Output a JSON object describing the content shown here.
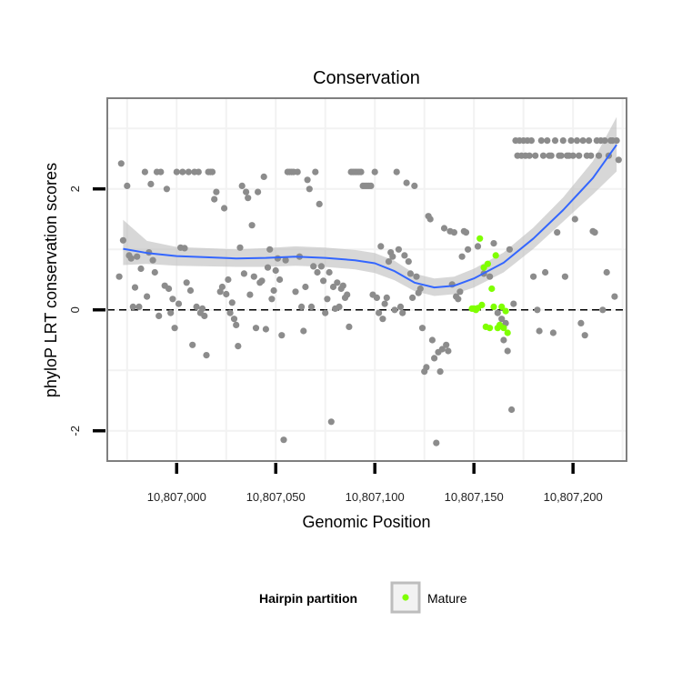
{
  "chart_data": {
    "type": "scatter",
    "title": "Conservation",
    "xlabel": "Genomic Position",
    "ylabel": "phyloP LRT conservation scores",
    "xlim": [
      10806965,
      10807227
    ],
    "ylim": [
      -2.5,
      3.5
    ],
    "x_ticks": [
      10807000,
      10807050,
      10807100,
      10807150,
      10807200
    ],
    "x_tick_labels": [
      "10,807,000",
      "10,807,050",
      "10,807,100",
      "10,807,150",
      "10,807,200"
    ],
    "y_ticks": [
      -2,
      0,
      2
    ],
    "y_tick_labels": [
      "-2",
      "0",
      "2"
    ],
    "reference_line": {
      "y": 0,
      "style": "dashed"
    },
    "grid": true,
    "colors": {
      "points": "#8c8c8c",
      "mature": "#7fff00",
      "smooth": "#3366ff",
      "ribbon": "#bdbdbd",
      "frame": "#7f7f7f"
    },
    "legend": {
      "title": "Hairpin partition",
      "entries": [
        {
          "label": "Mature",
          "color": "#7fff00"
        }
      ],
      "position": "bottom"
    },
    "smooth": {
      "x": [
        10806973,
        10806985,
        10807000,
        10807015,
        10807030,
        10807045,
        10807060,
        10807075,
        10807090,
        10807100,
        10807110,
        10807120,
        10807130,
        10807140,
        10807150,
        10807165,
        10807180,
        10807195,
        10807210,
        10807222
      ],
      "y": [
        1.01,
        0.94,
        0.89,
        0.87,
        0.85,
        0.86,
        0.88,
        0.86,
        0.82,
        0.77,
        0.64,
        0.45,
        0.37,
        0.4,
        0.52,
        0.78,
        1.18,
        1.65,
        2.18,
        2.73
      ],
      "lower": [
        0.74,
        0.76,
        0.73,
        0.72,
        0.71,
        0.71,
        0.73,
        0.71,
        0.67,
        0.61,
        0.49,
        0.31,
        0.23,
        0.26,
        0.37,
        0.62,
        1.01,
        1.46,
        1.91,
        2.29
      ],
      "upper": [
        1.49,
        1.14,
        1.04,
        1.02,
        1.0,
        1.02,
        1.05,
        1.03,
        0.99,
        0.94,
        0.81,
        0.6,
        0.52,
        0.55,
        0.68,
        0.95,
        1.36,
        1.86,
        2.46,
        3.19
      ]
    },
    "series": [
      {
        "name": "",
        "color": "#8c8c8c",
        "points": [
          [
            10806971,
            0.55
          ],
          [
            10806972,
            2.42
          ],
          [
            10806973,
            1.15
          ],
          [
            10806975,
            2.05
          ],
          [
            10806976,
            0.9
          ],
          [
            10806977,
            0.85
          ],
          [
            10806978,
            0.05
          ],
          [
            10806979,
            0.37
          ],
          [
            10806980,
            0.88
          ],
          [
            10806981,
            0.05
          ],
          [
            10806982,
            0.68
          ],
          [
            10806984,
            2.28
          ],
          [
            10806985,
            0.22
          ],
          [
            10806986,
            0.95
          ],
          [
            10806987,
            2.08
          ],
          [
            10806988,
            0.82
          ],
          [
            10806989,
            0.62
          ],
          [
            10806990,
            2.28
          ],
          [
            10806991,
            -0.1
          ],
          [
            10806992,
            2.28
          ],
          [
            10806994,
            0.4
          ],
          [
            10806995,
            2.0
          ],
          [
            10806996,
            0.35
          ],
          [
            10806997,
            -0.05
          ],
          [
            10806998,
            0.18
          ],
          [
            10806999,
            -0.3
          ],
          [
            10807000,
            2.28
          ],
          [
            10807001,
            0.1
          ],
          [
            10807002,
            1.03
          ],
          [
            10807003,
            2.28
          ],
          [
            10807004,
            1.02
          ],
          [
            10807005,
            0.45
          ],
          [
            10807006,
            2.28
          ],
          [
            10807007,
            0.32
          ],
          [
            10807008,
            -0.58
          ],
          [
            10807009,
            2.28
          ],
          [
            10807010,
            0.05
          ],
          [
            10807011,
            2.28
          ],
          [
            10807012,
            -0.05
          ],
          [
            10807013,
            0.02
          ],
          [
            10807014,
            -0.1
          ],
          [
            10807015,
            -0.75
          ],
          [
            10807016,
            2.28
          ],
          [
            10807017,
            2.28
          ],
          [
            10807018,
            2.28
          ],
          [
            10807019,
            1.83
          ],
          [
            10807020,
            1.95
          ],
          [
            10807022,
            0.3
          ],
          [
            10807023,
            0.38
          ],
          [
            10807024,
            1.68
          ],
          [
            10807025,
            0.26
          ],
          [
            10807026,
            0.5
          ],
          [
            10807027,
            -0.05
          ],
          [
            10807028,
            0.12
          ],
          [
            10807029,
            -0.15
          ],
          [
            10807030,
            -0.25
          ],
          [
            10807031,
            -0.6
          ],
          [
            10807032,
            1.03
          ],
          [
            10807033,
            2.05
          ],
          [
            10807034,
            0.6
          ],
          [
            10807035,
            1.95
          ],
          [
            10807036,
            1.85
          ],
          [
            10807037,
            0.25
          ],
          [
            10807038,
            1.4
          ],
          [
            10807039,
            0.55
          ],
          [
            10807040,
            -0.3
          ],
          [
            10807041,
            1.95
          ],
          [
            10807042,
            0.45
          ],
          [
            10807043,
            0.48
          ],
          [
            10807044,
            2.2
          ],
          [
            10807045,
            -0.32
          ],
          [
            10807046,
            0.7
          ],
          [
            10807047,
            1.0
          ],
          [
            10807048,
            0.18
          ],
          [
            10807049,
            0.32
          ],
          [
            10807050,
            0.65
          ],
          [
            10807051,
            0.85
          ],
          [
            10807052,
            0.5
          ],
          [
            10807053,
            -0.42
          ],
          [
            10807054,
            -2.15
          ],
          [
            10807055,
            0.82
          ],
          [
            10807056,
            2.28
          ],
          [
            10807057,
            2.28
          ],
          [
            10807058,
            2.28
          ],
          [
            10807059,
            2.28
          ],
          [
            10807060,
            0.3
          ],
          [
            10807061,
            2.28
          ],
          [
            10807062,
            0.88
          ],
          [
            10807063,
            0.05
          ],
          [
            10807064,
            -0.35
          ],
          [
            10807065,
            0.38
          ],
          [
            10807066,
            2.15
          ],
          [
            10807067,
            2.0
          ],
          [
            10807068,
            0.05
          ],
          [
            10807069,
            0.72
          ],
          [
            10807070,
            2.28
          ],
          [
            10807071,
            0.62
          ],
          [
            10807072,
            1.75
          ],
          [
            10807073,
            0.72
          ],
          [
            10807074,
            0.48
          ],
          [
            10807075,
            -0.05
          ],
          [
            10807076,
            0.18
          ],
          [
            10807077,
            0.62
          ],
          [
            10807078,
            -1.85
          ],
          [
            10807079,
            0.38
          ],
          [
            10807080,
            0.02
          ],
          [
            10807081,
            0.45
          ],
          [
            10807082,
            0.05
          ],
          [
            10807083,
            0.35
          ],
          [
            10807084,
            0.4
          ],
          [
            10807085,
            0.2
          ],
          [
            10807086,
            0.25
          ],
          [
            10807087,
            -0.28
          ],
          [
            10807088,
            2.28
          ],
          [
            10807089,
            2.28
          ],
          [
            10807090,
            2.28
          ],
          [
            10807091,
            2.28
          ],
          [
            10807092,
            2.28
          ],
          [
            10807093,
            2.28
          ],
          [
            10807094,
            2.05
          ],
          [
            10807095,
            2.05
          ],
          [
            10807096,
            2.05
          ],
          [
            10807097,
            2.05
          ],
          [
            10807098,
            2.05
          ],
          [
            10807099,
            0.25
          ],
          [
            10807100,
            2.28
          ],
          [
            10807101,
            0.2
          ],
          [
            10807102,
            -0.05
          ],
          [
            10807103,
            1.05
          ],
          [
            10807104,
            -0.15
          ],
          [
            10807105,
            0.1
          ],
          [
            10807106,
            0.2
          ],
          [
            10807107,
            0.8
          ],
          [
            10807108,
            0.95
          ],
          [
            10807109,
            0.88
          ],
          [
            10807110,
            0.0
          ],
          [
            10807111,
            2.28
          ],
          [
            10807112,
            1.0
          ],
          [
            10807113,
            0.05
          ],
          [
            10807114,
            -0.05
          ],
          [
            10807115,
            0.9
          ],
          [
            10807116,
            2.1
          ],
          [
            10807117,
            0.8
          ],
          [
            10807118,
            0.6
          ],
          [
            10807119,
            0.2
          ],
          [
            10807120,
            2.05
          ],
          [
            10807121,
            0.55
          ],
          [
            10807122,
            0.28
          ],
          [
            10807123,
            0.35
          ],
          [
            10807124,
            -0.3
          ],
          [
            10807125,
            -1.02
          ],
          [
            10807126,
            -0.95
          ],
          [
            10807127,
            1.55
          ],
          [
            10807128,
            1.5
          ],
          [
            10807129,
            -0.5
          ],
          [
            10807130,
            -0.8
          ],
          [
            10807131,
            -2.2
          ],
          [
            10807132,
            -0.7
          ],
          [
            10807133,
            -1.02
          ],
          [
            10807134,
            -0.65
          ],
          [
            10807135,
            1.35
          ],
          [
            10807136,
            -0.58
          ],
          [
            10807137,
            -0.68
          ],
          [
            10807138,
            1.3
          ],
          [
            10807139,
            0.42
          ],
          [
            10807140,
            1.28
          ],
          [
            10807141,
            0.22
          ],
          [
            10807142,
            0.18
          ],
          [
            10807143,
            0.3
          ],
          [
            10807144,
            0.88
          ],
          [
            10807145,
            1.3
          ],
          [
            10807146,
            1.28
          ],
          [
            10807147,
            1.0
          ],
          [
            10807152,
            1.05
          ],
          [
            10807155,
            0.6
          ],
          [
            10807158,
            0.55
          ],
          [
            10807160,
            1.1
          ],
          [
            10807162,
            -0.05
          ],
          [
            10807164,
            -0.15
          ],
          [
            10807165,
            -0.5
          ],
          [
            10807166,
            -0.22
          ],
          [
            10807167,
            -0.68
          ],
          [
            10807168,
            1.0
          ],
          [
            10807169,
            -1.65
          ],
          [
            10807170,
            0.1
          ],
          [
            10807171,
            2.8
          ],
          [
            10807172,
            2.55
          ],
          [
            10807173,
            2.8
          ],
          [
            10807174,
            2.55
          ],
          [
            10807175,
            2.8
          ],
          [
            10807176,
            2.55
          ],
          [
            10807177,
            2.8
          ],
          [
            10807178,
            2.55
          ],
          [
            10807179,
            2.8
          ],
          [
            10807180,
            0.55
          ],
          [
            10807181,
            2.55
          ],
          [
            10807182,
            0.0
          ],
          [
            10807183,
            -0.35
          ],
          [
            10807184,
            2.8
          ],
          [
            10807185,
            2.55
          ],
          [
            10807186,
            0.62
          ],
          [
            10807187,
            2.8
          ],
          [
            10807188,
            2.55
          ],
          [
            10807189,
            2.55
          ],
          [
            10807190,
            -0.38
          ],
          [
            10807191,
            2.8
          ],
          [
            10807192,
            1.28
          ],
          [
            10807193,
            2.55
          ],
          [
            10807194,
            2.55
          ],
          [
            10807195,
            2.8
          ],
          [
            10807196,
            0.55
          ],
          [
            10807197,
            2.55
          ],
          [
            10807198,
            2.55
          ],
          [
            10807199,
            2.8
          ],
          [
            10807200,
            2.55
          ],
          [
            10807201,
            1.5
          ],
          [
            10807202,
            2.8
          ],
          [
            10807203,
            2.55
          ],
          [
            10807204,
            -0.22
          ],
          [
            10807205,
            2.8
          ],
          [
            10807206,
            -0.42
          ],
          [
            10807207,
            2.55
          ],
          [
            10807208,
            2.8
          ],
          [
            10807209,
            2.55
          ],
          [
            10807210,
            1.3
          ],
          [
            10807211,
            1.28
          ],
          [
            10807212,
            2.8
          ],
          [
            10807213,
            2.55
          ],
          [
            10807214,
            2.8
          ],
          [
            10807215,
            0.0
          ],
          [
            10807216,
            2.8
          ],
          [
            10807217,
            0.62
          ],
          [
            10807218,
            2.55
          ],
          [
            10807219,
            2.8
          ],
          [
            10807220,
            2.8
          ],
          [
            10807221,
            0.22
          ],
          [
            10807222,
            2.8
          ],
          [
            10807223,
            2.48
          ]
        ]
      },
      {
        "name": "Mature",
        "color": "#7fff00",
        "points": [
          [
            10807149,
            0.02
          ],
          [
            10807150,
            0.02
          ],
          [
            10807151,
            0.0
          ],
          [
            10807152,
            0.03
          ],
          [
            10807153,
            1.18
          ],
          [
            10807154,
            0.08
          ],
          [
            10807155,
            0.7
          ],
          [
            10807156,
            -0.28
          ],
          [
            10807157,
            0.76
          ],
          [
            10807158,
            -0.3
          ],
          [
            10807159,
            0.35
          ],
          [
            10807160,
            0.05
          ],
          [
            10807161,
            0.9
          ],
          [
            10807162,
            -0.3
          ],
          [
            10807163,
            -0.25
          ],
          [
            10807164,
            0.05
          ],
          [
            10807165,
            -0.3
          ],
          [
            10807166,
            -0.02
          ],
          [
            10807167,
            -0.38
          ]
        ]
      }
    ]
  }
}
